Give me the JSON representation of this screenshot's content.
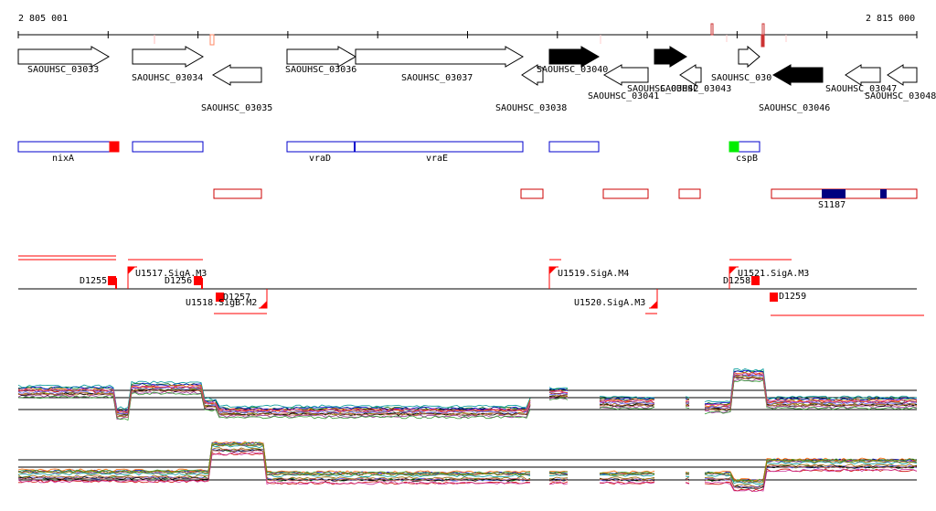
{
  "coords": {
    "start_label": "2 805 001",
    "end_label": "2 815 000"
  },
  "genes": [
    {
      "label": "SAOUHSC_03033",
      "strand": "+",
      "filled": false
    },
    {
      "label": "SAOUHSC_03034",
      "strand": "+",
      "filled": false
    },
    {
      "label": "SAOUHSC_03035",
      "strand": "-",
      "filled": false
    },
    {
      "label": "SAOUHSC_03036",
      "strand": "+",
      "filled": false
    },
    {
      "label": "SAOUHSC_03037",
      "strand": "+",
      "filled": false
    },
    {
      "label": "SAOUHSC_03038",
      "strand": "-",
      "filled": false
    },
    {
      "label": "SAOUHSC_03040",
      "strand": "+",
      "filled": true
    },
    {
      "label": "SAOUHSC_03041",
      "strand": "-",
      "filled": false
    },
    {
      "label": "SAOUHSC_03042",
      "strand": "+",
      "filled": true
    },
    {
      "label": "SAOUHSC_03043",
      "strand": "-",
      "filled": false
    },
    {
      "label": "SAOUHSC_030",
      "strand": "+",
      "filled": false
    },
    {
      "label": "SAOUHSC_03046",
      "strand": "-",
      "filled": true
    },
    {
      "label": "SAOUHSC_03047",
      "strand": "-",
      "filled": false
    },
    {
      "label": "SAOUHSC_03048",
      "strand": "-",
      "filled": false
    }
  ],
  "annotations": [
    {
      "label": "nixA"
    },
    {
      "label": ""
    },
    {
      "label": "vraD"
    },
    {
      "label": "vraE"
    },
    {
      "label": ""
    },
    {
      "label": "cspB"
    }
  ],
  "feature_labels": {
    "s1187": "S1187"
  },
  "segments": [
    {
      "label": "D1255"
    },
    {
      "label": "U1517.SigA.M3"
    },
    {
      "label": "D1256"
    },
    {
      "label": "D1257"
    },
    {
      "label": "U1518.SigB.M2"
    },
    {
      "label": "U1519.SigA.M4"
    },
    {
      "label": "U1520.SigA.M3"
    },
    {
      "label": "D1258"
    },
    {
      "label": "U1521.SigA.M3"
    },
    {
      "label": "D1259"
    }
  ],
  "colors": {
    "gene_outline": "#000000",
    "annotation": "#0000cc",
    "feature": "#cc0000",
    "segment": "#ff0000",
    "promoter_green": "#00ee00",
    "dark_blue": "#000080"
  }
}
